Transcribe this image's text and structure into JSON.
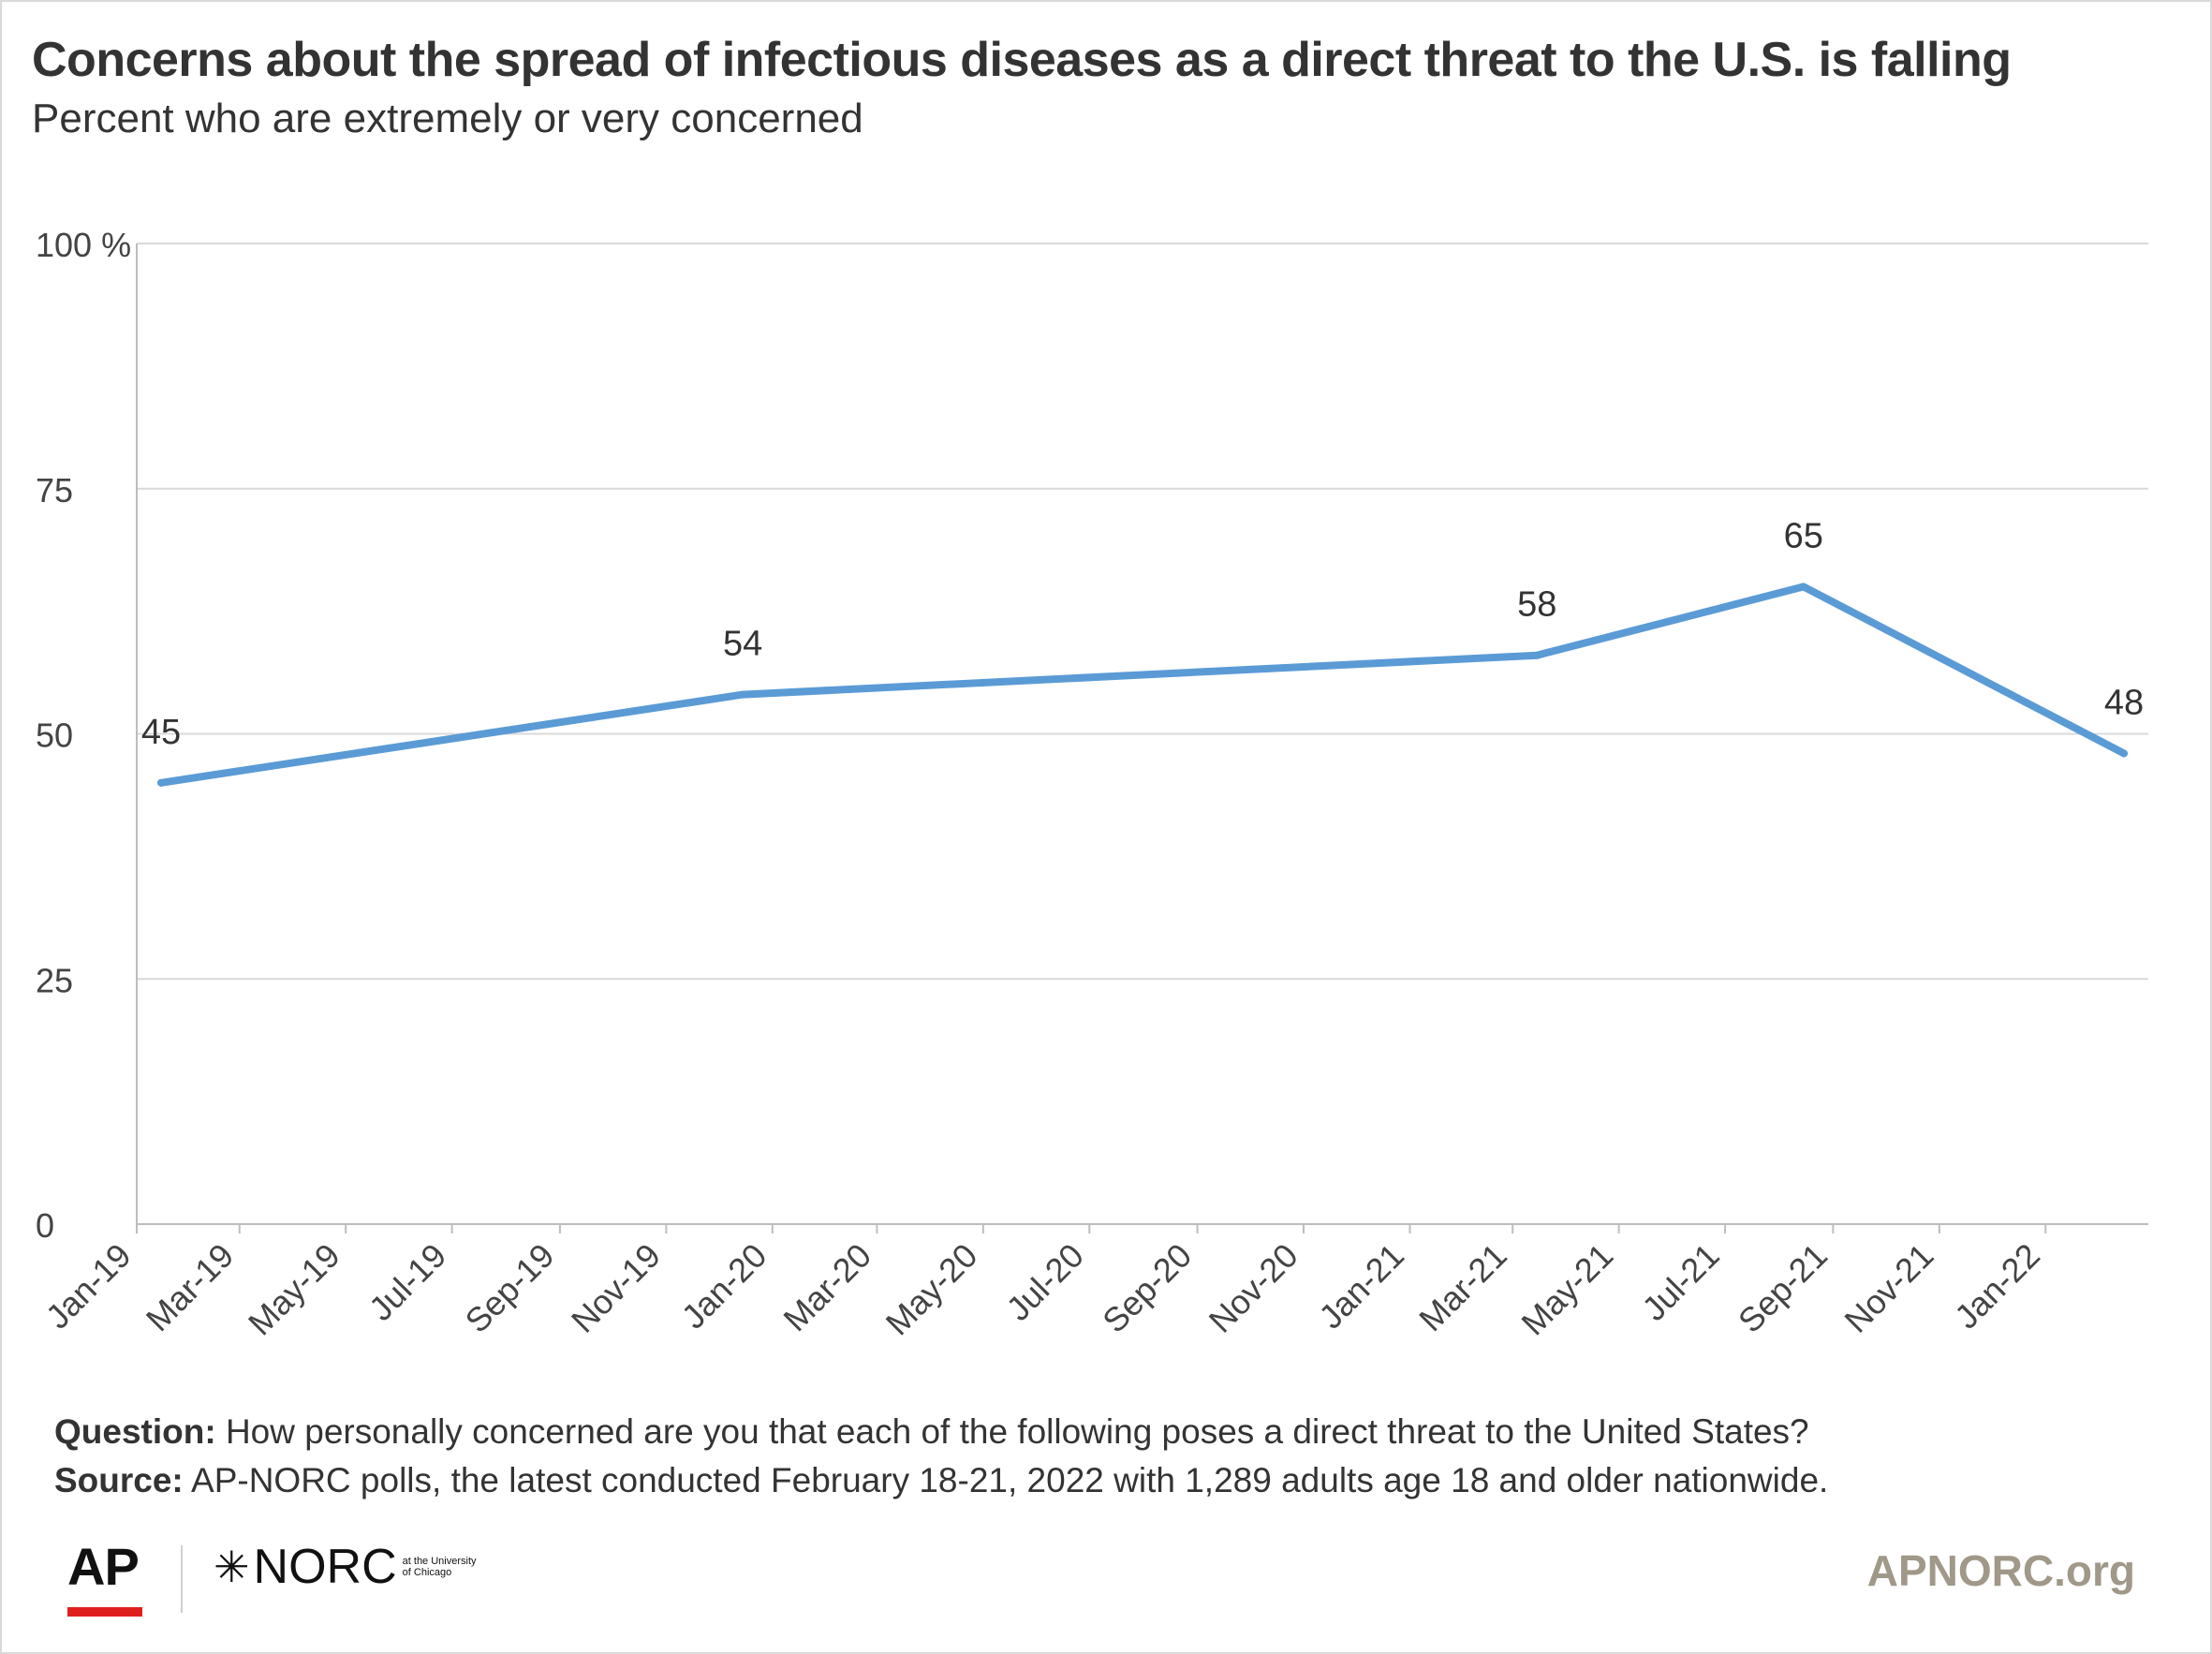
{
  "title": "Concerns about the spread of infectious diseases as a direct threat to the U.S. is falling",
  "subtitle": "Percent who are extremely or very concerned",
  "chart_data": {
    "type": "line",
    "title": "Concerns about the spread of infectious diseases as a direct threat to the U.S. is falling",
    "subtitle": "Percent who are extremely or very concerned",
    "xlabel": "",
    "ylabel": "",
    "ylim": [
      0,
      100
    ],
    "y_ticks": [
      0,
      25,
      50,
      75,
      100
    ],
    "y_tick_labels": [
      "0",
      "25",
      "50",
      "75",
      "100 %"
    ],
    "x_tick_labels": [
      "Jan-19",
      "Mar-19",
      "May-19",
      "Jul-19",
      "Sep-19",
      "Nov-19",
      "Jan-20",
      "Mar-20",
      "May-20",
      "Jul-20",
      "Sep-20",
      "Nov-20",
      "Jan-21",
      "Mar-21",
      "May-21",
      "Jul-21",
      "Sep-21",
      "Nov-21",
      "Jan-22"
    ],
    "xlim": [
      "2019-01-01",
      "2022-03-01"
    ],
    "grid": true,
    "legend": "none",
    "series": [
      {
        "color": "#5b9bd5",
        "points": [
          {
            "x": "2019-01-15",
            "y": 45,
            "label": "45"
          },
          {
            "x": "2019-12-15",
            "y": 54,
            "label": "54"
          },
          {
            "x": "2021-03-15",
            "y": 58,
            "label": "58"
          },
          {
            "x": "2021-08-15",
            "y": 65,
            "label": "65"
          },
          {
            "x": "2022-02-15",
            "y": 48,
            "label": "48"
          }
        ]
      }
    ]
  },
  "footnotes": {
    "question_label": "Question:",
    "question_text": "How personally concerned are you that each of the following poses a direct threat to the United States?",
    "source_label": "Source:",
    "source_text": "AP-NORC polls, the latest conducted February 18-21, 2022 with 1,289 adults age 18 and older nationwide."
  },
  "branding": {
    "ap_logo": "AP",
    "ap_logo_color": "#e0201e",
    "norc_logo": "NORC",
    "norc_logo_sub": "at the University of Chicago",
    "website": "APNORC.org"
  }
}
